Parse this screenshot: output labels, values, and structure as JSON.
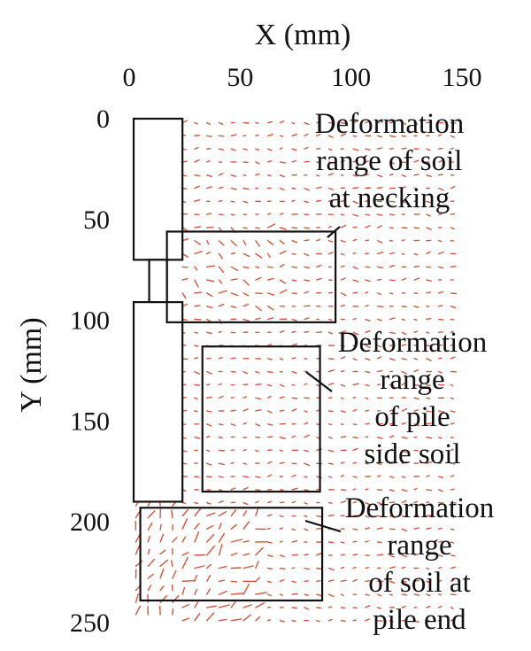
{
  "chart_data": {
    "type": "vector_field",
    "xlabel": "X (mm)",
    "ylabel": "Y (mm)",
    "xlim": [
      0,
      150
    ],
    "ylim": [
      0,
      250
    ],
    "y_inverted": true,
    "x_axis_position": "top",
    "xticks": [
      0,
      50,
      100,
      150
    ],
    "yticks": [
      0,
      50,
      100,
      150,
      200,
      250
    ],
    "vector_color": "#d2553a",
    "pile": {
      "upper_segment": {
        "x": [
          2,
          24
        ],
        "y": [
          0,
          70
        ]
      },
      "necking": {
        "x": [
          9,
          17
        ],
        "y": [
          70,
          91
        ]
      },
      "lower_segment": {
        "x": [
          2,
          24
        ],
        "y": [
          91,
          190
        ]
      }
    },
    "regions": [
      {
        "id": "necking",
        "x": [
          17,
          93
        ],
        "y": [
          56,
          101
        ],
        "label": [
          "Deformation",
          "range of soil",
          "at necking"
        ]
      },
      {
        "id": "pile-side",
        "x": [
          33,
          86
        ],
        "y": [
          113,
          185
        ],
        "label": [
          "Deformation",
          "range",
          "of pile",
          "side soil"
        ]
      },
      {
        "id": "pile-end",
        "x": [
          5,
          87
        ],
        "y": [
          193,
          239
        ],
        "label": [
          "Deformation",
          "range",
          "of soil at",
          "pile end"
        ]
      }
    ]
  }
}
